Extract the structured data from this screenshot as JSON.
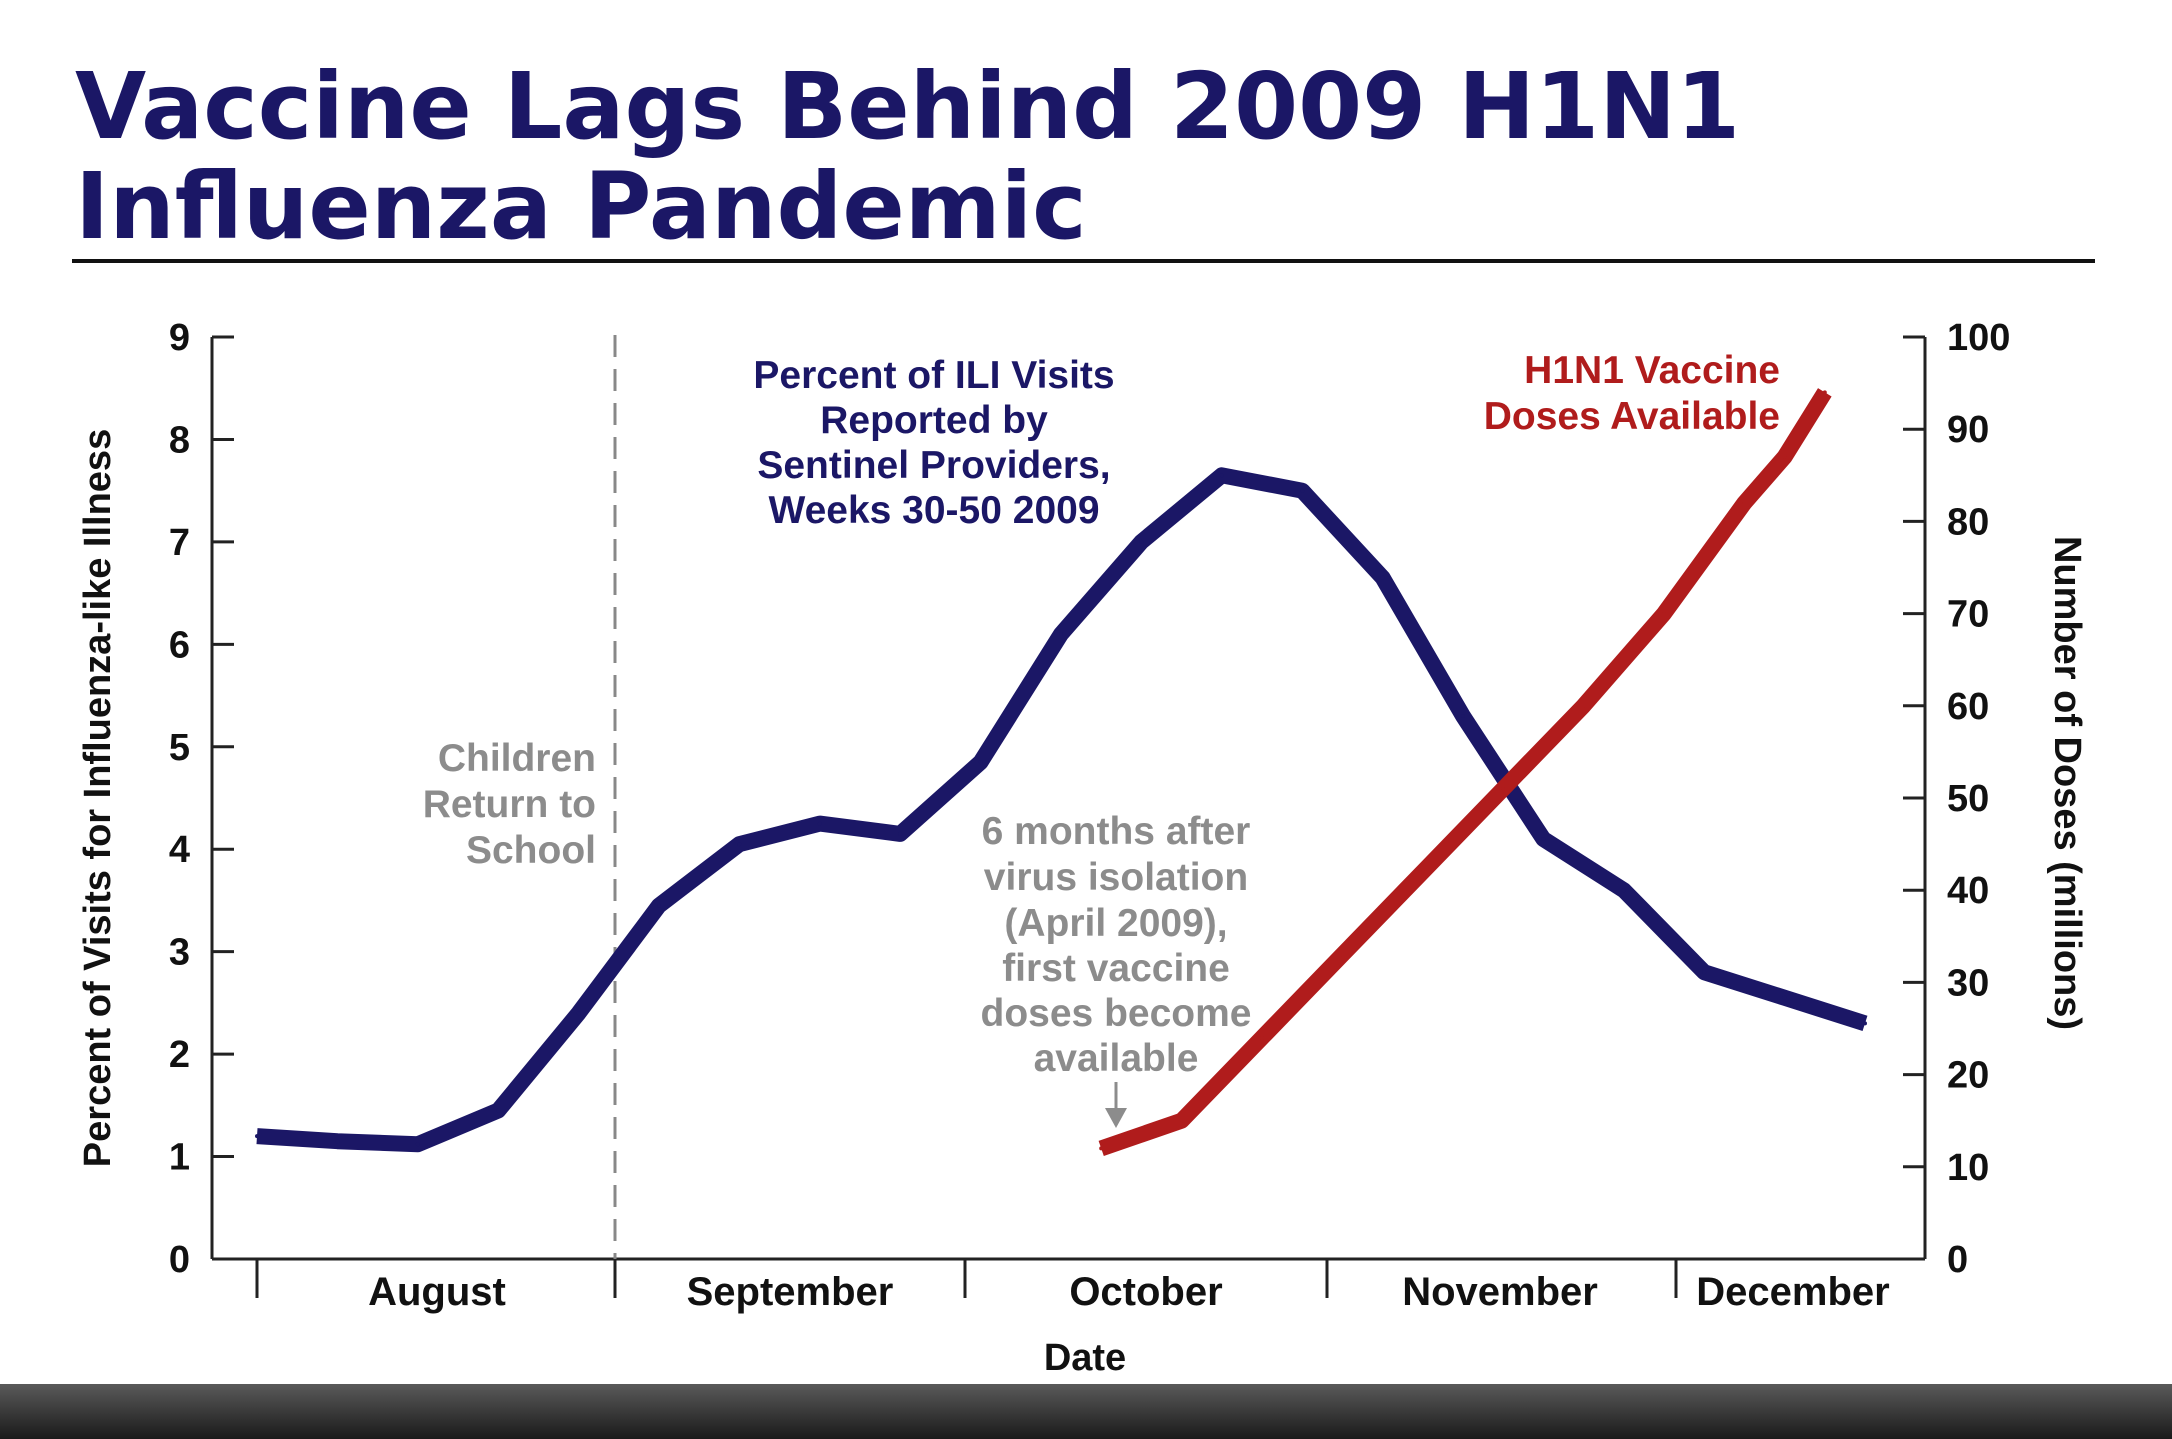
{
  "title_line1": "Vaccine Lags Behind 2009 H1N1",
  "title_line2": "Influenza Pandemic",
  "colors": {
    "title": "#1b1766",
    "ili": "#1b1766",
    "vaccine": "#b01c1c",
    "annotation_gray": "#8c8c8c"
  },
  "chart_data": {
    "type": "line",
    "title": "Vaccine Lags Behind 2009 H1N1 Influenza Pandemic",
    "xlabel": "Date",
    "ylabel_left": "Percent of Visits for Influenza-like Illness",
    "ylabel_right": "Number of Doses (millions)",
    "ylim_left": [
      0,
      9
    ],
    "ylim_right": [
      0,
      100
    ],
    "left_ticks": [
      "0",
      "1",
      "2",
      "3",
      "4",
      "5",
      "6",
      "7",
      "8",
      "9"
    ],
    "right_ticks": [
      "0",
      "10",
      "20",
      "30",
      "40",
      "50",
      "60",
      "70",
      "80",
      "90",
      "100"
    ],
    "months": [
      "August",
      "September",
      "October",
      "November",
      "December"
    ],
    "legend": "none",
    "grid": false,
    "series": [
      {
        "name": "Percent of ILI Visits Reported by Sentinel Providers, Weeks 30-50 2009",
        "axis": "left",
        "x": [
          30,
          31,
          32,
          33,
          34,
          35,
          36,
          37,
          38,
          39,
          40,
          41,
          42,
          43,
          44,
          45,
          46,
          47,
          48,
          49,
          50
        ],
        "y": [
          1.2,
          1.15,
          1.12,
          1.45,
          2.4,
          3.45,
          4.05,
          4.25,
          4.15,
          4.85,
          6.1,
          7.0,
          7.65,
          7.5,
          6.65,
          5.3,
          4.1,
          3.6,
          2.8,
          2.55,
          2.3
        ]
      },
      {
        "name": "H1N1 Vaccine Doses Available",
        "axis": "right",
        "x": [
          40.5,
          41.5,
          42.5,
          43.5,
          44.5,
          45.5,
          46.5,
          47.5,
          48.5,
          49,
          49.5
        ],
        "y": [
          12,
          15,
          24,
          33,
          42,
          51,
          60,
          70,
          82,
          87,
          94
        ]
      }
    ],
    "annotations": {
      "school_label": [
        "Children",
        "Return to",
        "School"
      ],
      "vaccine_note": [
        "6 months after",
        "virus isolation",
        "(April 2009),",
        "first vaccine",
        "doses become",
        "available"
      ],
      "ili_label": [
        "Percent of ILI Visits",
        "Reported by",
        "Sentinel Providers,",
        "Weeks 30-50 2009"
      ],
      "vaccine_label": [
        "H1N1 Vaccine",
        "Doses Available"
      ]
    }
  }
}
